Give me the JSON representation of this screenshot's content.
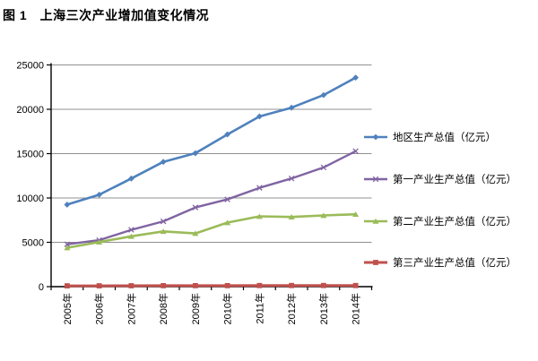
{
  "page": {
    "title": "图 1　上海三次产业增加值变化情况"
  },
  "chart_data": {
    "type": "line",
    "title": "图 1　上海三次产业增加值变化情况",
    "xlabel": "",
    "ylabel": "",
    "categories": [
      "2005年",
      "2006年",
      "2007年",
      "2008年",
      "2009年",
      "2010年",
      "2011年",
      "2012年",
      "2013年",
      "2014年"
    ],
    "series": [
      {
        "name": "地区生产总值（亿元）",
        "color": "#4F81BD",
        "marker": "diamond",
        "line_width": 2.6,
        "values": [
          9248,
          10366,
          12189,
          14070,
          15046,
          17166,
          19196,
          20182,
          21602,
          23568
        ]
      },
      {
        "name": "第一产业生产总值（亿元）",
        "color": "#8064A2",
        "marker": "x",
        "line_width": 2.4,
        "values": [
          4776,
          5244,
          6409,
          7366,
          8931,
          9834,
          11143,
          12199,
          13445,
          15276
        ]
      },
      {
        "name": "第二产业生产总值（亿元）",
        "color": "#9BBB59",
        "marker": "triangle",
        "line_width": 2.6,
        "values": [
          4381,
          5028,
          5679,
          6236,
          6002,
          7218,
          7928,
          7854,
          8028,
          8165
        ]
      },
      {
        "name": "第三产业生产总值（亿元）",
        "color": "#C0504D",
        "marker": "square",
        "line_width": 3.0,
        "values": [
          90,
          94,
          102,
          111,
          113,
          114,
          125,
          128,
          130,
          125
        ]
      }
    ],
    "yticks": [
      0,
      5000,
      10000,
      15000,
      20000,
      25000
    ],
    "ylim": [
      0,
      25000
    ],
    "grid": "horizontal",
    "grid_color": "#909090",
    "axis_color": "#000000",
    "legend_position": "right"
  }
}
